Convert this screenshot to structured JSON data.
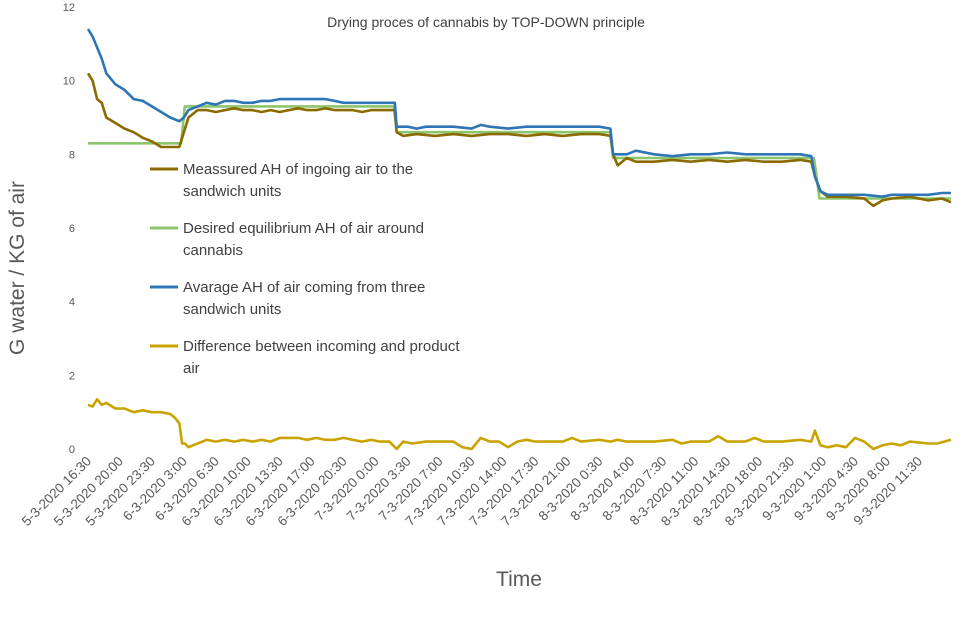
{
  "chart_data": {
    "type": "line",
    "title": "Drying proces of cannabis by TOP-DOWN principle",
    "xlabel": "Time",
    "ylabel": "G water / KG of air",
    "ylim": [
      0,
      12
    ],
    "yticks": [
      0,
      2,
      4,
      6,
      8,
      10,
      12
    ],
    "grid": false,
    "legend_position": "left-inside",
    "x_tick_labels": [
      "5-3-2020 16:30",
      "5-3-2020 20:00",
      "5-3-2020 23:30",
      "6-3-2020 3:00",
      "6-3-2020 6:30",
      "6-3-2020 10:00",
      "6-3-2020 13:30",
      "6-3-2020 17:00",
      "6-3-2020 20:30",
      "7-3-2020 0:00",
      "7-3-2020 3:30",
      "7-3-2020 7:00",
      "7-3-2020 10:30",
      "7-3-2020 14:00",
      "7-3-2020 17:30",
      "7-3-2020 21:00",
      "8-3-2020 0:30",
      "8-3-2020 4:00",
      "8-3-2020 7:30",
      "8-3-2020 11:00",
      "8-3-2020 14:30",
      "8-3-2020 18:00",
      "8-3-2020 21:30",
      "9-3-2020 1:00",
      "9-3-2020 4:30",
      "9-3-2020 8:00",
      "9-3-2020 11:30"
    ],
    "x_step_hours": 3.5,
    "x_range_hours": [
      0,
      94.5
    ],
    "series": [
      {
        "name": "Meassured AH of ingoing air to the sandwich units",
        "color": "#8B6A00",
        "points": [
          [
            0,
            10.2
          ],
          [
            0.5,
            10.0
          ],
          [
            1,
            9.5
          ],
          [
            1.5,
            9.4
          ],
          [
            2,
            9.0
          ],
          [
            3,
            8.85
          ],
          [
            4,
            8.7
          ],
          [
            5,
            8.6
          ],
          [
            6,
            8.45
          ],
          [
            7,
            8.35
          ],
          [
            8,
            8.2
          ],
          [
            9,
            8.2
          ],
          [
            10,
            8.2
          ],
          [
            10.5,
            8.6
          ],
          [
            11,
            9.0
          ],
          [
            12,
            9.2
          ],
          [
            13,
            9.2
          ],
          [
            14,
            9.15
          ],
          [
            15,
            9.2
          ],
          [
            16,
            9.25
          ],
          [
            17,
            9.2
          ],
          [
            18,
            9.2
          ],
          [
            19,
            9.15
          ],
          [
            20,
            9.2
          ],
          [
            21,
            9.15
          ],
          [
            22,
            9.2
          ],
          [
            23,
            9.25
          ],
          [
            24,
            9.2
          ],
          [
            25,
            9.2
          ],
          [
            26,
            9.25
          ],
          [
            27,
            9.2
          ],
          [
            28,
            9.2
          ],
          [
            29,
            9.2
          ],
          [
            30,
            9.15
          ],
          [
            31,
            9.2
          ],
          [
            32,
            9.2
          ],
          [
            33,
            9.2
          ],
          [
            33.6,
            9.2
          ],
          [
            33.8,
            8.6
          ],
          [
            34.5,
            8.5
          ],
          [
            36,
            8.55
          ],
          [
            38,
            8.5
          ],
          [
            40,
            8.55
          ],
          [
            42,
            8.5
          ],
          [
            44,
            8.55
          ],
          [
            46,
            8.55
          ],
          [
            48,
            8.5
          ],
          [
            50,
            8.55
          ],
          [
            52,
            8.5
          ],
          [
            54,
            8.55
          ],
          [
            56,
            8.55
          ],
          [
            57.2,
            8.5
          ],
          [
            57.5,
            8.0
          ],
          [
            58,
            7.7
          ],
          [
            59,
            7.9
          ],
          [
            60,
            7.8
          ],
          [
            62,
            7.8
          ],
          [
            64,
            7.85
          ],
          [
            66,
            7.8
          ],
          [
            68,
            7.85
          ],
          [
            70,
            7.8
          ],
          [
            72,
            7.85
          ],
          [
            74,
            7.8
          ],
          [
            76,
            7.8
          ],
          [
            78,
            7.85
          ],
          [
            79.2,
            7.8
          ],
          [
            79.6,
            7.4
          ],
          [
            80.2,
            7.0
          ],
          [
            81,
            6.85
          ],
          [
            83,
            6.85
          ],
          [
            85,
            6.8
          ],
          [
            86,
            6.6
          ],
          [
            87,
            6.75
          ],
          [
            88,
            6.8
          ],
          [
            90,
            6.85
          ],
          [
            92,
            6.75
          ],
          [
            93.5,
            6.8
          ],
          [
            94.5,
            6.7
          ]
        ]
      },
      {
        "name": "Desired equilibrium AH of air around cannabis",
        "color": "#8CC56C",
        "points": [
          [
            0,
            8.3
          ],
          [
            10.2,
            8.3
          ],
          [
            10.6,
            9.3
          ],
          [
            33.5,
            9.3
          ],
          [
            33.8,
            8.6
          ],
          [
            57.2,
            8.6
          ],
          [
            57.5,
            7.9
          ],
          [
            79.5,
            7.9
          ],
          [
            80.1,
            6.8
          ],
          [
            94.5,
            6.8
          ]
        ]
      },
      {
        "name": "Avarage AH of air coming from three sandwich units",
        "color": "#2E75B6",
        "points": [
          [
            0,
            11.4
          ],
          [
            0.5,
            11.2
          ],
          [
            1,
            10.9
          ],
          [
            1.5,
            10.6
          ],
          [
            2,
            10.2
          ],
          [
            3,
            9.9
          ],
          [
            4,
            9.75
          ],
          [
            5,
            9.5
          ],
          [
            6,
            9.45
          ],
          [
            7,
            9.3
          ],
          [
            8,
            9.15
          ],
          [
            9,
            9.0
          ],
          [
            10,
            8.9
          ],
          [
            10.5,
            9.0
          ],
          [
            11,
            9.2
          ],
          [
            12,
            9.3
          ],
          [
            13,
            9.4
          ],
          [
            14,
            9.35
          ],
          [
            15,
            9.45
          ],
          [
            16,
            9.45
          ],
          [
            17,
            9.4
          ],
          [
            18,
            9.4
          ],
          [
            19,
            9.45
          ],
          [
            20,
            9.45
          ],
          [
            21,
            9.5
          ],
          [
            22,
            9.5
          ],
          [
            23,
            9.5
          ],
          [
            24,
            9.5
          ],
          [
            25,
            9.5
          ],
          [
            26,
            9.5
          ],
          [
            27,
            9.45
          ],
          [
            28,
            9.4
          ],
          [
            29,
            9.4
          ],
          [
            30,
            9.4
          ],
          [
            31,
            9.4
          ],
          [
            32,
            9.4
          ],
          [
            33,
            9.4
          ],
          [
            33.6,
            9.4
          ],
          [
            33.8,
            8.75
          ],
          [
            35,
            8.75
          ],
          [
            36,
            8.7
          ],
          [
            37,
            8.75
          ],
          [
            38,
            8.75
          ],
          [
            40,
            8.75
          ],
          [
            42,
            8.7
          ],
          [
            43,
            8.8
          ],
          [
            44,
            8.75
          ],
          [
            46,
            8.7
          ],
          [
            48,
            8.75
          ],
          [
            50,
            8.75
          ],
          [
            52,
            8.75
          ],
          [
            54,
            8.75
          ],
          [
            56,
            8.75
          ],
          [
            57.2,
            8.7
          ],
          [
            57.5,
            8.0
          ],
          [
            59,
            8.0
          ],
          [
            60,
            8.1
          ],
          [
            62,
            8.0
          ],
          [
            64,
            7.95
          ],
          [
            66,
            8.0
          ],
          [
            68,
            8.0
          ],
          [
            70,
            8.05
          ],
          [
            72,
            8.0
          ],
          [
            74,
            8.0
          ],
          [
            76,
            8.0
          ],
          [
            78,
            8.0
          ],
          [
            79.2,
            7.95
          ],
          [
            79.6,
            7.4
          ],
          [
            80.2,
            7.0
          ],
          [
            81,
            6.9
          ],
          [
            83,
            6.9
          ],
          [
            85,
            6.9
          ],
          [
            87,
            6.85
          ],
          [
            88,
            6.9
          ],
          [
            90,
            6.9
          ],
          [
            92,
            6.9
          ],
          [
            93.5,
            6.95
          ],
          [
            94.5,
            6.95
          ]
        ]
      },
      {
        "name": "Difference between incoming and product air",
        "color": "#C9A400",
        "points": [
          [
            0,
            1.2
          ],
          [
            0.5,
            1.15
          ],
          [
            1,
            1.35
          ],
          [
            1.5,
            1.2
          ],
          [
            2,
            1.25
          ],
          [
            3,
            1.1
          ],
          [
            4,
            1.1
          ],
          [
            5,
            1.0
          ],
          [
            6,
            1.05
          ],
          [
            7,
            1.0
          ],
          [
            8,
            1.0
          ],
          [
            9,
            0.95
          ],
          [
            9.5,
            0.85
          ],
          [
            10,
            0.7
          ],
          [
            10.3,
            0.15
          ],
          [
            10.6,
            0.15
          ],
          [
            11,
            0.05
          ],
          [
            11.5,
            0.1
          ],
          [
            12,
            0.15
          ],
          [
            13,
            0.25
          ],
          [
            14,
            0.2
          ],
          [
            15,
            0.25
          ],
          [
            16,
            0.2
          ],
          [
            17,
            0.25
          ],
          [
            18,
            0.2
          ],
          [
            19,
            0.25
          ],
          [
            20,
            0.2
          ],
          [
            21,
            0.3
          ],
          [
            22,
            0.3
          ],
          [
            23,
            0.3
          ],
          [
            24,
            0.25
          ],
          [
            25,
            0.3
          ],
          [
            26,
            0.25
          ],
          [
            27,
            0.25
          ],
          [
            28,
            0.3
          ],
          [
            29,
            0.25
          ],
          [
            30,
            0.2
          ],
          [
            31,
            0.25
          ],
          [
            32,
            0.2
          ],
          [
            33,
            0.2
          ],
          [
            33.8,
            0.0
          ],
          [
            34.5,
            0.2
          ],
          [
            35.5,
            0.15
          ],
          [
            37,
            0.2
          ],
          [
            38,
            0.2
          ],
          [
            40,
            0.2
          ],
          [
            41,
            0.05
          ],
          [
            42,
            0.0
          ],
          [
            43,
            0.3
          ],
          [
            44,
            0.2
          ],
          [
            45,
            0.2
          ],
          [
            46,
            0.05
          ],
          [
            47,
            0.2
          ],
          [
            48,
            0.25
          ],
          [
            49,
            0.2
          ],
          [
            50,
            0.2
          ],
          [
            52,
            0.2
          ],
          [
            53,
            0.3
          ],
          [
            54,
            0.2
          ],
          [
            56,
            0.25
          ],
          [
            57.2,
            0.2
          ],
          [
            58,
            0.25
          ],
          [
            59,
            0.2
          ],
          [
            60,
            0.2
          ],
          [
            62,
            0.2
          ],
          [
            64,
            0.25
          ],
          [
            65,
            0.15
          ],
          [
            66,
            0.2
          ],
          [
            68,
            0.2
          ],
          [
            69,
            0.35
          ],
          [
            70,
            0.2
          ],
          [
            72,
            0.2
          ],
          [
            73,
            0.3
          ],
          [
            74,
            0.2
          ],
          [
            76,
            0.2
          ],
          [
            78,
            0.25
          ],
          [
            79.2,
            0.2
          ],
          [
            79.6,
            0.5
          ],
          [
            80.2,
            0.1
          ],
          [
            81,
            0.05
          ],
          [
            82,
            0.1
          ],
          [
            83,
            0.05
          ],
          [
            84,
            0.3
          ],
          [
            85,
            0.2
          ],
          [
            86,
            0.0
          ],
          [
            87,
            0.1
          ],
          [
            88,
            0.15
          ],
          [
            89,
            0.1
          ],
          [
            90,
            0.2
          ],
          [
            92,
            0.15
          ],
          [
            93,
            0.15
          ],
          [
            94.5,
            0.25
          ]
        ]
      }
    ]
  }
}
